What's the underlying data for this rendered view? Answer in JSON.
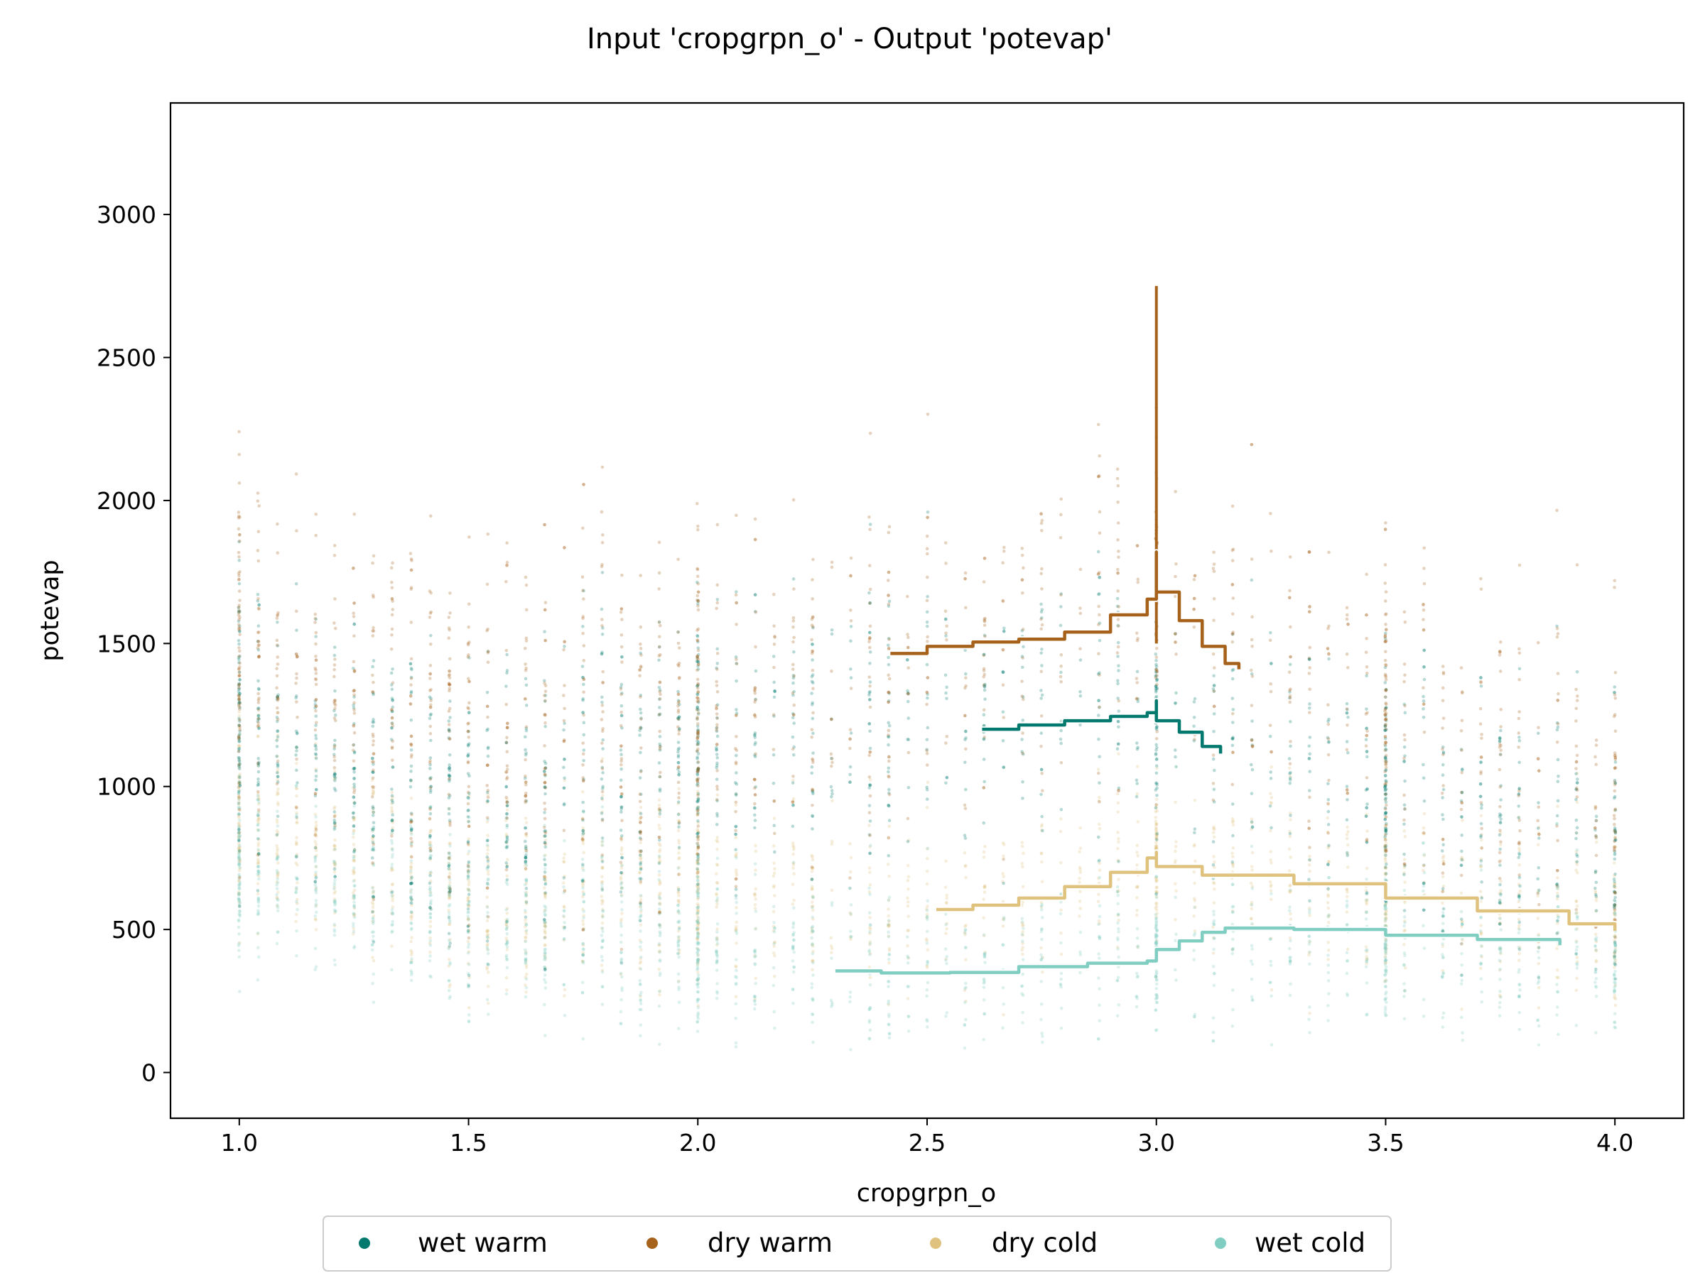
{
  "chart_data": {
    "type": "scatter",
    "title": "Input 'cropgrpn_o' - Output 'potevap'",
    "xlabel": "cropgrpn_o",
    "ylabel": "potevap",
    "xlim": [
      0.85,
      4.15
    ],
    "ylim": [
      -160,
      3390
    ],
    "xticks": [
      "1.0",
      "1.5",
      "2.0",
      "2.5",
      "3.0",
      "3.5",
      "4.0"
    ],
    "yticks": [
      "0",
      "500",
      "1000",
      "1500",
      "2000",
      "2500",
      "3000"
    ],
    "grid": false,
    "legend_position": "bottom-center",
    "series": [
      {
        "name": "wet warm",
        "color": "#01796f",
        "scatter_center": [
          [
            1.0,
            1250
          ],
          [
            1.5,
            900
          ],
          [
            2.0,
            1150
          ],
          [
            2.4,
            1250
          ],
          [
            2.8,
            1300
          ],
          [
            3.0,
            1250
          ],
          [
            3.5,
            1000
          ],
          [
            4.0,
            800
          ]
        ],
        "scatter_spread": 450,
        "trend": [
          [
            2.62,
            1200
          ],
          [
            2.7,
            1215
          ],
          [
            2.8,
            1230
          ],
          [
            2.9,
            1245
          ],
          [
            2.98,
            1258
          ],
          [
            3.0,
            1300
          ],
          [
            3.0,
            1230
          ],
          [
            3.05,
            1190
          ],
          [
            3.1,
            1140
          ],
          [
            3.14,
            1115
          ]
        ]
      },
      {
        "name": "dry warm",
        "color": "#a6611a",
        "scatter_center": [
          [
            1.0,
            1500
          ],
          [
            1.5,
            1200
          ],
          [
            2.0,
            1300
          ],
          [
            2.5,
            1450
          ],
          [
            2.8,
            1550
          ],
          [
            3.0,
            1700
          ],
          [
            3.3,
            1400
          ],
          [
            3.6,
            1200
          ],
          [
            4.0,
            1050
          ]
        ],
        "scatter_spread": 550,
        "trend": [
          [
            2.42,
            1465
          ],
          [
            2.5,
            1490
          ],
          [
            2.6,
            1505
          ],
          [
            2.7,
            1515
          ],
          [
            2.8,
            1540
          ],
          [
            2.9,
            1600
          ],
          [
            2.98,
            1655
          ],
          [
            3.0,
            1820
          ],
          [
            3.0,
            1680
          ],
          [
            3.05,
            1580
          ],
          [
            3.1,
            1490
          ],
          [
            3.15,
            1430
          ],
          [
            3.18,
            1410
          ]
        ],
        "spike": [
          3.0,
          2750
        ]
      },
      {
        "name": "dry cold",
        "color": "#dfc27d",
        "scatter_center": [
          [
            1.0,
            900
          ],
          [
            1.5,
            600
          ],
          [
            2.0,
            650
          ],
          [
            2.5,
            550
          ],
          [
            3.0,
            750
          ],
          [
            3.5,
            650
          ],
          [
            4.0,
            550
          ]
        ],
        "scatter_spread": 300,
        "trend": [
          [
            2.52,
            570
          ],
          [
            2.6,
            585
          ],
          [
            2.7,
            610
          ],
          [
            2.8,
            650
          ],
          [
            2.9,
            700
          ],
          [
            2.98,
            750
          ],
          [
            3.0,
            770
          ],
          [
            3.0,
            720
          ],
          [
            3.1,
            690
          ],
          [
            3.3,
            660
          ],
          [
            3.5,
            610
          ],
          [
            3.7,
            565
          ],
          [
            3.9,
            520
          ],
          [
            4.0,
            495
          ]
        ]
      },
      {
        "name": "wet cold",
        "color": "#80cdc1",
        "scatter_center": [
          [
            1.0,
            700
          ],
          [
            1.5,
            550
          ],
          [
            2.0,
            450
          ],
          [
            2.5,
            350
          ],
          [
            3.0,
            420
          ],
          [
            3.5,
            450
          ],
          [
            4.0,
            420
          ]
        ],
        "scatter_spread": 280,
        "trend": [
          [
            2.3,
            355
          ],
          [
            2.4,
            348
          ],
          [
            2.55,
            350
          ],
          [
            2.7,
            370
          ],
          [
            2.85,
            382
          ],
          [
            2.98,
            390
          ],
          [
            3.0,
            400
          ],
          [
            3.0,
            430
          ],
          [
            3.05,
            460
          ],
          [
            3.1,
            490
          ],
          [
            3.15,
            505
          ],
          [
            3.3,
            500
          ],
          [
            3.5,
            480
          ],
          [
            3.7,
            465
          ],
          [
            3.88,
            445
          ]
        ]
      }
    ]
  }
}
